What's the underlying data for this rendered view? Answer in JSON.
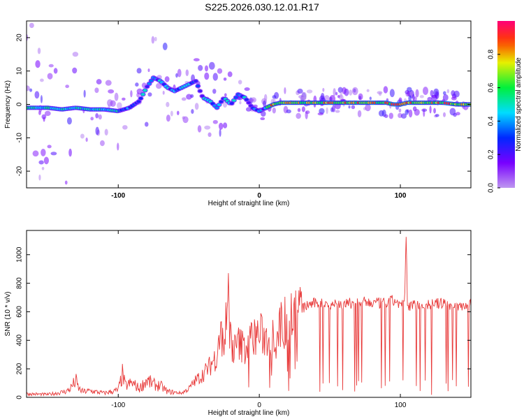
{
  "title": "S225.2026.030.12.01.R17",
  "chart_data": [
    {
      "type": "heatmap",
      "xlabel": "Height of straight line (km)",
      "ylabel": "Frequency (Hz)",
      "xlim": [
        -165,
        150
      ],
      "ylim": [
        -25,
        25
      ],
      "xticks": [
        -100,
        0,
        100
      ],
      "yticks": [
        -20,
        -10,
        0,
        10,
        20
      ],
      "colorbar": {
        "label": "Normalized spectral amplitude",
        "range": [
          0,
          1
        ],
        "ticks": [
          "0.0",
          "0.2",
          "0.4",
          "0.6",
          "0.8"
        ]
      },
      "ridge": {
        "x": [
          -165,
          -150,
          -140,
          -130,
          -120,
          -110,
          -100,
          -92,
          -85,
          -80,
          -75,
          -70,
          -65,
          -60,
          -55,
          -50,
          -45,
          -40,
          -35,
          -30,
          -25,
          -20,
          -15,
          -10,
          -5,
          0,
          5,
          10,
          15,
          20,
          40,
          60,
          80,
          90,
          95,
          100,
          105,
          110,
          120,
          130,
          140,
          150
        ],
        "y": [
          -1,
          -1,
          -1.5,
          -1,
          -1.5,
          -1.5,
          -2,
          -1,
          1,
          5,
          8,
          7,
          5,
          4,
          5,
          6,
          7,
          2,
          1,
          -1,
          2,
          0,
          3,
          2,
          -1,
          -2,
          -1,
          0,
          0.5,
          0.5,
          0.5,
          0.5,
          0.5,
          0.5,
          0,
          0,
          0.5,
          0.5,
          0.5,
          0.5,
          0,
          0
        ]
      }
    },
    {
      "type": "line",
      "xlabel": "Height of straight line (km)",
      "ylabel": "SNR (10 * v/v)",
      "xlim": [
        -165,
        150
      ],
      "ylim": [
        0,
        1170
      ],
      "xticks": [
        -100,
        0,
        100
      ],
      "yticks": [
        0,
        200,
        400,
        600,
        800,
        1000
      ],
      "color": "#e83a3a",
      "series": [
        {
          "x": [
            -165,
            -150,
            -140,
            -135,
            -130,
            -128,
            -125,
            -120,
            -110,
            -100,
            -97,
            -95,
            -90,
            -85,
            -80,
            -75,
            -70,
            -65,
            -60,
            -55,
            -50,
            -45,
            -40,
            -35,
            -30,
            -27,
            -25,
            -22,
            -20,
            -18,
            -15,
            -10,
            -5,
            0,
            5,
            10,
            15,
            20,
            25,
            30,
            35,
            40,
            50,
            60,
            70,
            80,
            90,
            95,
            100,
            103,
            104,
            105,
            110,
            120,
            130,
            140,
            150
          ],
          "y": [
            25,
            20,
            35,
            50,
            115,
            60,
            40,
            45,
            30,
            50,
            160,
            80,
            100,
            60,
            120,
            90,
            80,
            40,
            35,
            30,
            60,
            120,
            160,
            220,
            300,
            440,
            380,
            700,
            400,
            330,
            380,
            350,
            420,
            450,
            410,
            450,
            500,
            560,
            600,
            620,
            650,
            660,
            660,
            650,
            670,
            660,
            660,
            680,
            650,
            650,
            1170,
            640,
            650,
            650,
            660,
            640,
            650
          ]
        }
      ]
    }
  ]
}
